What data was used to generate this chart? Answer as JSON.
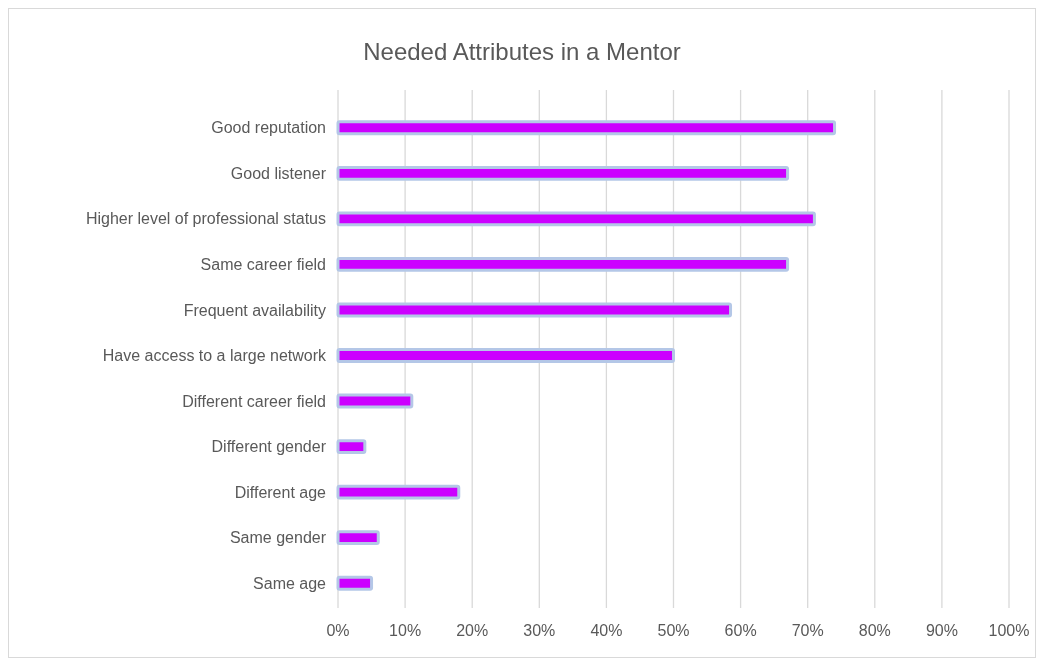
{
  "chart_data": {
    "type": "bar",
    "orientation": "horizontal",
    "title": "Needed Attributes in a Mentor",
    "categories": [
      "Good reputation",
      "Good listener",
      "Higher level of professional status",
      "Same career field",
      "Frequent availability",
      "Have access to a large network",
      "Different career field",
      "Different gender",
      "Different age",
      "Same gender",
      "Same age"
    ],
    "values": [
      0.74,
      0.67,
      0.71,
      0.67,
      0.585,
      0.5,
      0.11,
      0.04,
      0.18,
      0.06,
      0.05
    ],
    "color": "#cc00ff",
    "xlim": [
      0,
      1
    ],
    "xticks": [
      {
        "value": 0,
        "label": "0%"
      },
      {
        "value": 0.1,
        "label": "10%"
      },
      {
        "value": 0.2,
        "label": "20%"
      },
      {
        "value": 0.3,
        "label": "30%"
      },
      {
        "value": 0.4,
        "label": "40%"
      },
      {
        "value": 0.5,
        "label": "50%"
      },
      {
        "value": 0.6,
        "label": "60%"
      },
      {
        "value": 0.7,
        "label": "70%"
      },
      {
        "value": 0.8,
        "label": "80%"
      },
      {
        "value": 0.9,
        "label": "90%"
      },
      {
        "value": 1,
        "label": "100%"
      }
    ],
    "grid": "x"
  }
}
